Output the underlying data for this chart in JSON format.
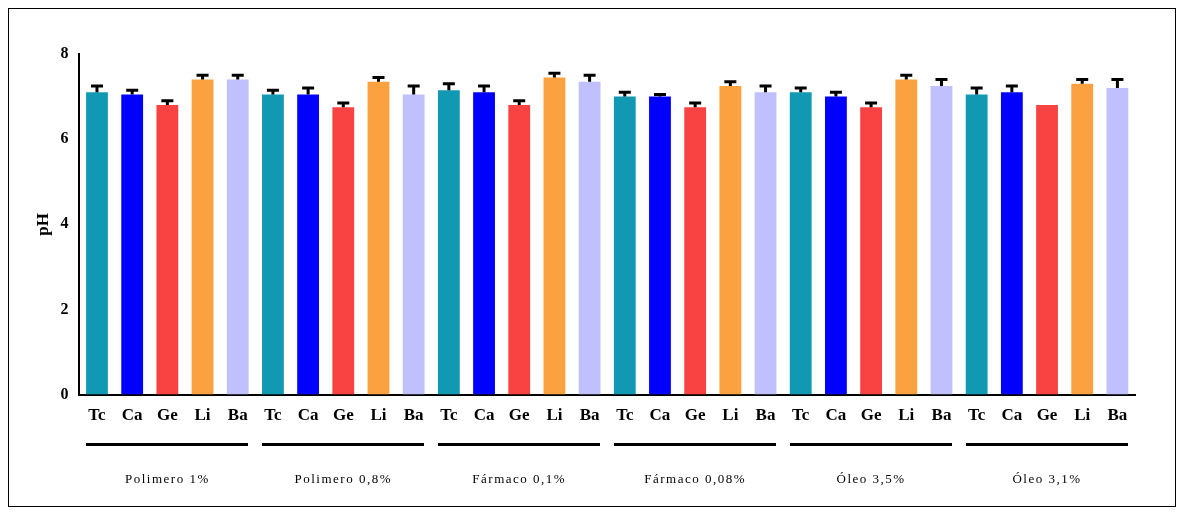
{
  "chart_data": {
    "type": "bar",
    "ylabel": "pH",
    "categories": [
      "Tc",
      "Ca",
      "Ge",
      "Li",
      "Ba",
      "Tc",
      "Ca",
      "Ge",
      "Li",
      "Ba",
      "Tc",
      "Ca",
      "Ge",
      "Li",
      "Ba",
      "Tc",
      "Ca",
      "Ge",
      "Li",
      "Ba",
      "Tc",
      "Ca",
      "Ge",
      "Li",
      "Ba",
      "Tc",
      "Ca",
      "Ge",
      "Li",
      "Ba"
    ],
    "values": [
      7.1,
      7.05,
      6.8,
      7.4,
      7.4,
      7.05,
      7.05,
      6.75,
      7.35,
      7.05,
      7.15,
      7.1,
      6.8,
      7.45,
      7.35,
      7.0,
      7.0,
      6.75,
      7.25,
      7.1,
      7.1,
      7.0,
      6.75,
      7.4,
      7.25,
      7.05,
      7.1,
      6.8,
      7.3,
      7.2
    ],
    "colors": [
      "#1199b3",
      "#0000ff",
      "#f94343",
      "#fba140",
      "#c0c0ff",
      "#1199b3",
      "#0000ff",
      "#f94343",
      "#fba140",
      "#c0c0ff",
      "#1199b3",
      "#0000ff",
      "#f94343",
      "#fba140",
      "#c0c0ff",
      "#1199b3",
      "#0000ff",
      "#f94343",
      "#fba140",
      "#c0c0ff",
      "#1199b3",
      "#0000ff",
      "#f94343",
      "#fba140",
      "#c0c0ff",
      "#1199b3",
      "#0000ff",
      "#f94343",
      "#fba140",
      "#c0c0ff"
    ],
    "errors": [
      [
        7.1,
        7.25
      ],
      [
        7.05,
        7.15
      ],
      [
        6.8,
        6.9
      ],
      [
        7.4,
        7.5
      ],
      [
        7.4,
        7.5
      ],
      [
        7.05,
        7.15
      ],
      [
        7.05,
        7.2
      ],
      [
        6.75,
        6.85
      ],
      [
        7.35,
        7.45
      ],
      [
        7.05,
        7.25
      ],
      [
        7.15,
        7.3
      ],
      [
        7.1,
        7.25
      ],
      [
        6.8,
        6.9
      ],
      [
        7.45,
        7.55
      ],
      [
        7.35,
        7.5
      ],
      [
        7.0,
        7.1
      ],
      [
        7.0,
        7.05
      ],
      [
        6.75,
        6.85
      ],
      [
        7.25,
        7.35
      ],
      [
        7.1,
        7.25
      ],
      [
        7.1,
        7.2
      ],
      [
        7.0,
        7.1
      ],
      [
        6.75,
        6.85
      ],
      [
        7.4,
        7.5
      ],
      [
        7.25,
        7.4
      ],
      [
        7.05,
        7.2
      ],
      [
        7.1,
        7.25
      ],
      null,
      [
        7.3,
        7.4
      ],
      [
        7.2,
        7.4
      ]
    ],
    "ylim": [
      0,
      8
    ],
    "yticks": [
      0,
      2,
      4,
      6,
      8
    ],
    "annotations": [
      "Polimero 1%",
      "Polimero 0,8%",
      "Fármaco 0,1%",
      "Fármaco 0,08%",
      "Óleo 3,5%",
      "Óleo 3,1%"
    ]
  }
}
